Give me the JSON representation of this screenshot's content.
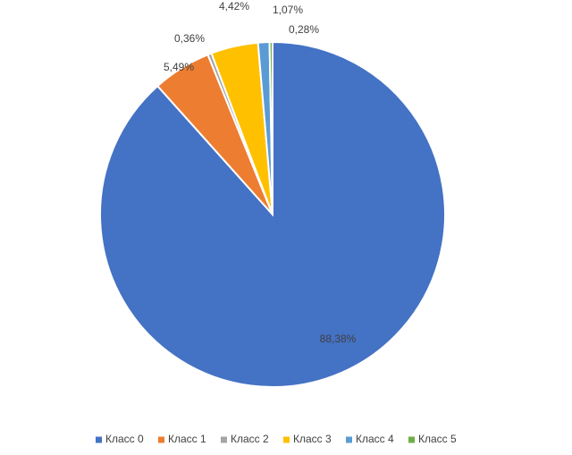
{
  "chart_data": {
    "type": "pie",
    "categories": [
      "Класс 0",
      "Класс 1",
      "Класс 2",
      "Класс 3",
      "Класс 4",
      "Класс 5"
    ],
    "values": [
      88.38,
      5.49,
      0.36,
      4.42,
      1.07,
      0.28
    ],
    "value_labels": [
      "88,38%",
      "5,49%",
      "0,36%",
      "4,42%",
      "1,07%",
      "0,28%"
    ],
    "colors": [
      "#4472c4",
      "#ed7d31",
      "#a5a5a5",
      "#ffc000",
      "#5b9bd5",
      "#70ad47"
    ],
    "legend": "bottom"
  }
}
